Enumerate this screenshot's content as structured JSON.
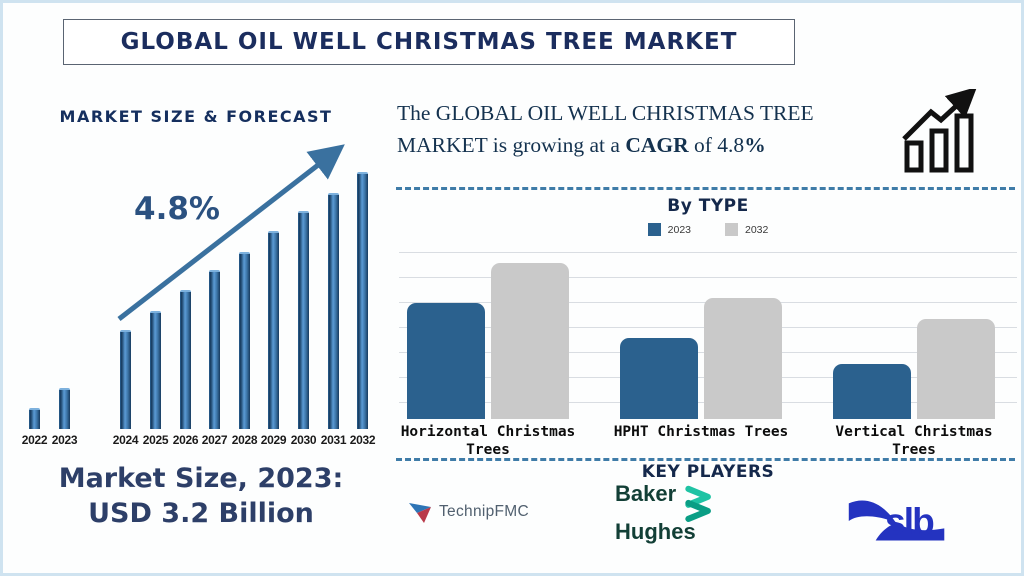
{
  "header": {
    "title": "GLOBAL OIL WELL CHRISTMAS TREE MARKET"
  },
  "left_panel": {
    "market_size": {
      "line1": "Market Size, 2023:",
      "line2": "USD 3.2 Billion"
    }
  },
  "right_panel": {
    "summary": {
      "line1": "The GLOBAL OIL WELL CHRISTMAS TREE",
      "line2_pre": "MARKET is growing at a ",
      "cagr": "CAGR",
      "line2_mid": " of 4.8",
      "percent": "%"
    },
    "key_players": {
      "heading": "KEY PLAYERS",
      "technipfmc_label": "TechnipFMC",
      "baker_line1": "Baker",
      "baker_line2": "Hughes",
      "slb_label": "slb"
    }
  },
  "colors": {
    "navy": "#1b2d5e",
    "arrow_blue": "#3a719f",
    "bar_blue_2023": "#2b618e",
    "bar_gray_2032": "#c9c9c9",
    "dashed_line": "#3f7ca8"
  },
  "chart_data": [
    {
      "id": "market-size-forecast",
      "type": "bar",
      "title": "MARKET SIZE & FORECAST",
      "annotation": "4.8%",
      "categories": [
        "2022",
        "2023",
        "2024",
        "2025",
        "2026",
        "2027",
        "2028",
        "2029",
        "2030",
        "2031",
        "2032"
      ],
      "values": [
        8,
        16,
        38.5,
        46,
        54,
        62,
        69,
        77,
        85,
        92,
        100
      ],
      "unit": "relative bar height, 2032 = 100; labeled fact: Market Size 2023 = USD 3.2 Billion, CAGR 4.8%",
      "bar_color": "#2e75b6",
      "grid": false,
      "trend_arrow": true
    },
    {
      "id": "by-type",
      "type": "bar",
      "title": "By TYPE",
      "categories": [
        "Horizontal Christmas Trees",
        "HPHT Christmas Trees",
        "Vertical Christmas Trees"
      ],
      "series": [
        {
          "name": "2023",
          "color": "#2b618e",
          "values": [
            70,
            49,
            33
          ]
        },
        {
          "name": "2032",
          "color": "#c9c9c9",
          "values": [
            94,
            73,
            60
          ]
        }
      ],
      "ylim": [
        0,
        100
      ],
      "unit": "relative bar height (% of axis, no numeric axis labels shown)",
      "grid": true,
      "legend_position": "top"
    }
  ]
}
